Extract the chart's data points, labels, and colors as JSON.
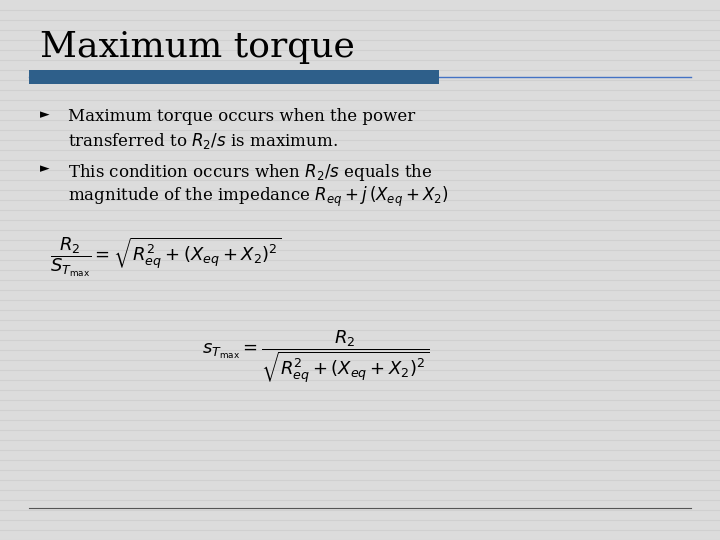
{
  "title": "Maximum torque",
  "title_color": "#000000",
  "title_fontsize": 26,
  "bg_color": "#dcdcdc",
  "stripe_color": "#c8c8c8",
  "header_bar_color": "#2e5f8a",
  "header_line_color": "#4472C4",
  "bullet_symbol": "►",
  "eq1": "$\\dfrac{R_2}{S_{T_{\\mathrm{max}}}} = \\sqrt{R_{eq}^2 + (X_{eq} + X_2)^2}$",
  "eq2": "$s_{T_{\\mathrm{max}}} = \\dfrac{R_2}{\\sqrt{R_{eq}^2 + (X_{eq} + X_2)^2}}$",
  "footer_line_color": "#555555",
  "text_color": "#000000",
  "bullet_color": "#000000",
  "font_family": "DejaVu Serif",
  "eq_fontsize": 13,
  "bullet_fontsize": 12
}
